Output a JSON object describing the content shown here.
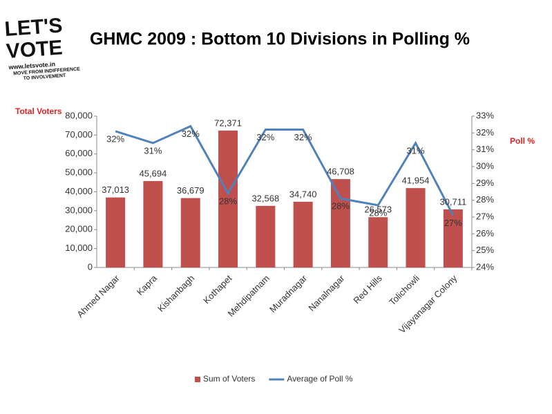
{
  "logo": {
    "line1": "LET'S",
    "line2": "VOTE",
    "url": "www.letsvote.in",
    "tagline1": "MOVE FROM INDIFFERENCE",
    "tagline2": "TO INVOLVEMENT"
  },
  "chart_data": {
    "type": "bar_line",
    "title": "GHMC 2009 : Bottom 10 Divisions in Polling %",
    "y_label": "Total Voters",
    "y2_label": "Poll %",
    "categories": [
      "Ahmed Nagar",
      "Kapra",
      "Kishanbagh",
      "Kothapet",
      "Mehdipatnam",
      "Muradnagar",
      "Nanalnagar",
      "Red Hills",
      "Tolichowli",
      "Vijayanagar Colony"
    ],
    "series": [
      {
        "name": "Sum of Voters",
        "color": "#c0504d",
        "type": "bar",
        "values": [
          37013,
          45694,
          36679,
          72371,
          32568,
          34740,
          46708,
          26573,
          41954,
          30711
        ],
        "value_labels": [
          "37,013",
          "45,694",
          "36,679",
          "72,371",
          "32,568",
          "34,740",
          "46,708",
          "26,573",
          "41,954",
          "30,711"
        ]
      },
      {
        "name": "Average of Poll %",
        "color": "#4f81bd",
        "type": "line",
        "axis": "y2",
        "values": [
          32.1,
          31.4,
          32.4,
          28.4,
          32.2,
          32.2,
          28.1,
          27.7,
          31.4,
          27.1
        ],
        "value_labels": [
          "32%",
          "31%",
          "32%",
          "28%",
          "32%",
          "32%",
          "28%",
          "28%",
          "31%",
          "27%"
        ]
      }
    ],
    "ylim": [
      0,
      80000
    ],
    "yticks": [
      0,
      {
        "value": 10000,
        "label": "10,000"
      },
      {
        "value": 20000,
        "label": "20,000"
      },
      {
        "value": 30000,
        "label": "30,000"
      },
      {
        "value": 40000,
        "label": "40,000"
      },
      {
        "value": 50000,
        "label": "50,000"
      },
      {
        "value": 60000,
        "label": "60,000"
      },
      {
        "value": 70000,
        "label": "70,000"
      },
      {
        "value": 80000,
        "label": "80,000"
      }
    ],
    "y2lim": [
      24,
      33
    ],
    "y2ticks": [
      {
        "value": 24,
        "label": "24%"
      },
      {
        "value": 25,
        "label": "25%"
      },
      {
        "value": 26,
        "label": "26%"
      },
      {
        "value": 27,
        "label": "27%"
      },
      {
        "value": 28,
        "label": "28%"
      },
      {
        "value": 29,
        "label": "29%"
      },
      {
        "value": 30,
        "label": "30%"
      },
      {
        "value": 31,
        "label": "31%"
      },
      {
        "value": 32,
        "label": "32%"
      },
      {
        "value": 33,
        "label": "33%"
      }
    ],
    "legend": "bottom",
    "grid": false
  }
}
